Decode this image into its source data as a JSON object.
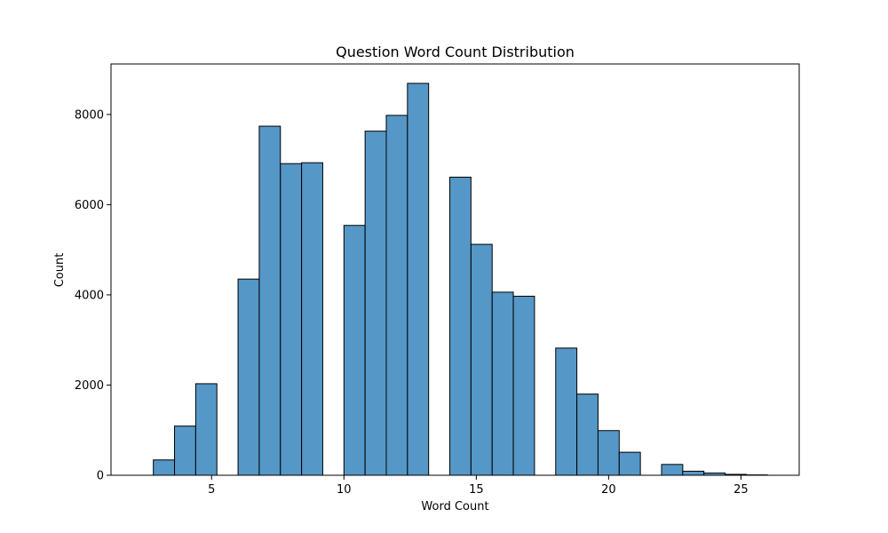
{
  "chart_data": {
    "type": "bar",
    "title": "Question Word Count Distribution",
    "xlabel": "Word Count",
    "ylabel": "Count",
    "xlim": [
      1.2,
      27.2
    ],
    "ylim": [
      0,
      9120
    ],
    "xticks": [
      5,
      10,
      15,
      20,
      25
    ],
    "yticks": [
      0,
      2000,
      4000,
      6000,
      8000
    ],
    "bar_color": "#5597c7",
    "edge_color": "#000000",
    "grid": false,
    "bins": [
      {
        "x0": 2.0,
        "x1": 2.8,
        "value": 0
      },
      {
        "x0": 2.8,
        "x1": 3.6,
        "value": 340
      },
      {
        "x0": 3.6,
        "x1": 4.4,
        "value": 1090
      },
      {
        "x0": 4.4,
        "x1": 5.2,
        "value": 2030
      },
      {
        "x0": 5.2,
        "x1": 6.0,
        "value": 0
      },
      {
        "x0": 6.0,
        "x1": 6.8,
        "value": 4350
      },
      {
        "x0": 6.8,
        "x1": 7.6,
        "value": 7740
      },
      {
        "x0": 7.6,
        "x1": 8.4,
        "value": 6910
      },
      {
        "x0": 8.4,
        "x1": 9.2,
        "value": 6930
      },
      {
        "x0": 9.2,
        "x1": 10.0,
        "value": 0
      },
      {
        "x0": 10.0,
        "x1": 10.8,
        "value": 5540
      },
      {
        "x0": 10.8,
        "x1": 11.6,
        "value": 7630
      },
      {
        "x0": 11.6,
        "x1": 12.4,
        "value": 7980
      },
      {
        "x0": 12.4,
        "x1": 13.2,
        "value": 8690
      },
      {
        "x0": 13.2,
        "x1": 14.0,
        "value": 0
      },
      {
        "x0": 14.0,
        "x1": 14.8,
        "value": 6610
      },
      {
        "x0": 14.8,
        "x1": 15.6,
        "value": 5120
      },
      {
        "x0": 15.6,
        "x1": 16.4,
        "value": 4060
      },
      {
        "x0": 16.4,
        "x1": 17.2,
        "value": 3970
      },
      {
        "x0": 17.2,
        "x1": 18.0,
        "value": 0
      },
      {
        "x0": 18.0,
        "x1": 18.8,
        "value": 2820
      },
      {
        "x0": 18.8,
        "x1": 19.6,
        "value": 1800
      },
      {
        "x0": 19.6,
        "x1": 20.4,
        "value": 990
      },
      {
        "x0": 20.4,
        "x1": 21.2,
        "value": 510
      },
      {
        "x0": 21.2,
        "x1": 22.0,
        "value": 0
      },
      {
        "x0": 22.0,
        "x1": 22.8,
        "value": 240
      },
      {
        "x0": 22.8,
        "x1": 23.6,
        "value": 90
      },
      {
        "x0": 23.6,
        "x1": 24.4,
        "value": 50
      },
      {
        "x0": 24.4,
        "x1": 25.2,
        "value": 20
      },
      {
        "x0": 25.2,
        "x1": 26.0,
        "value": 8
      }
    ]
  }
}
